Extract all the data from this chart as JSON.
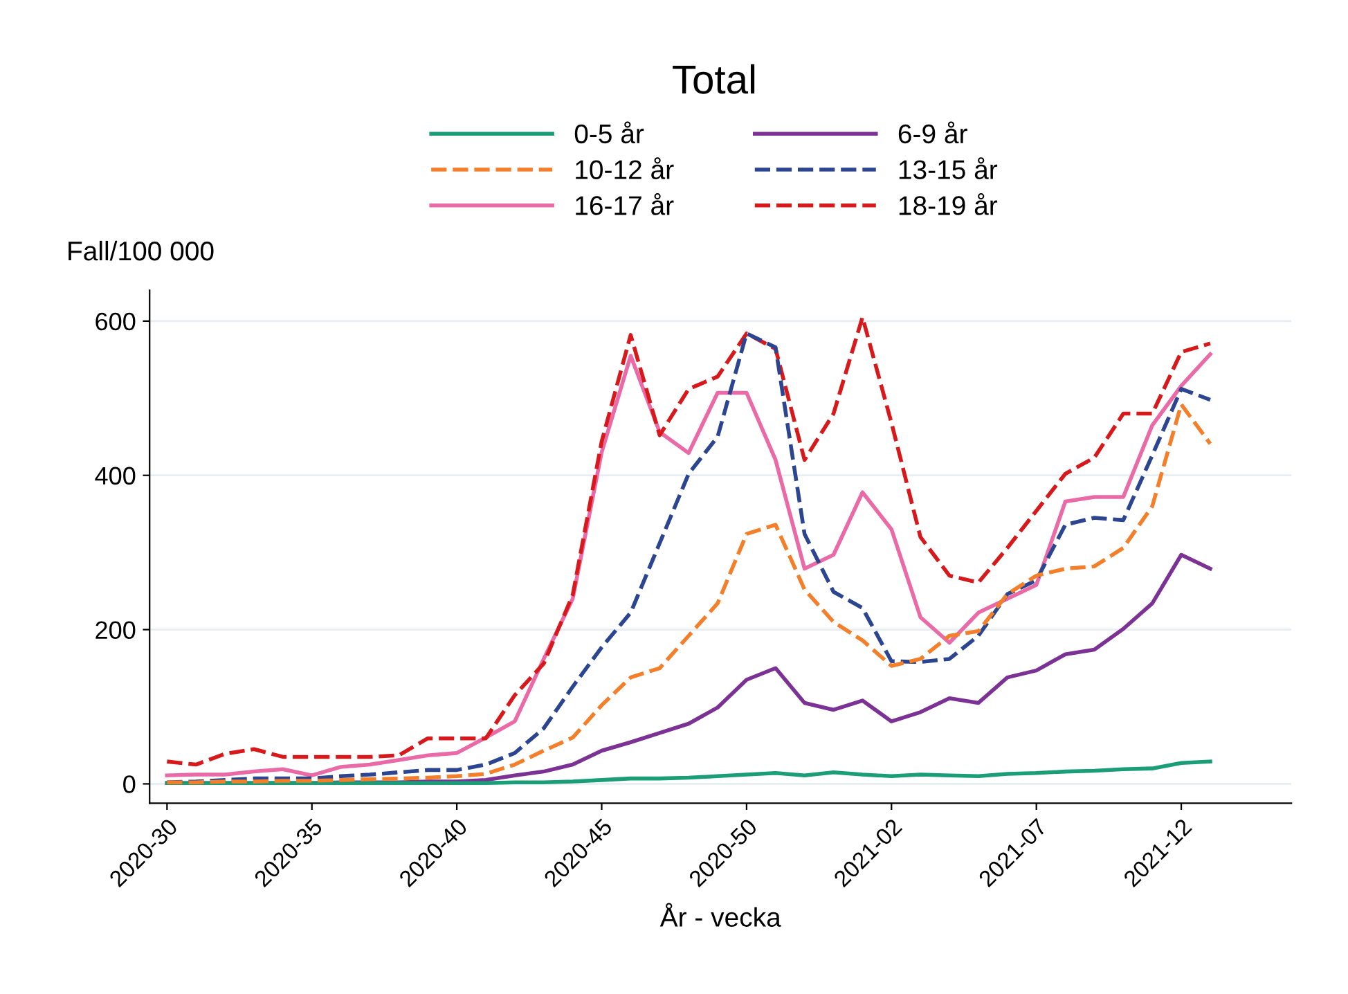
{
  "chart_data": {
    "type": "line",
    "title": "Total",
    "ylabel": "Fall/100 000",
    "xlabel": "År - vecka",
    "categories": [
      "2020-30",
      null,
      null,
      null,
      null,
      "2020-35",
      null,
      null,
      null,
      null,
      "2020-40",
      null,
      null,
      null,
      null,
      "2020-45",
      null,
      null,
      null,
      null,
      "2020-50",
      null,
      null,
      null,
      null,
      "2021-02",
      null,
      null,
      null,
      null,
      "2021-07",
      null,
      null,
      null,
      null,
      "2021-12",
      null,
      null,
      null
    ],
    "ylim": [
      -25,
      640
    ],
    "yticks": [
      0,
      200,
      400,
      600
    ],
    "grid": "y",
    "legend": "top",
    "marker": "none",
    "series": [
      {
        "name": "0-5 år",
        "color": "#1b9e77",
        "line_style": "solid",
        "values": [
          1,
          1,
          1,
          1,
          1,
          1,
          1,
          1,
          1,
          1,
          1,
          1,
          2,
          2,
          3,
          5,
          7,
          7,
          8,
          10,
          12,
          14,
          11,
          15,
          12,
          10,
          12,
          11,
          10,
          13,
          14,
          16,
          17,
          19,
          20,
          27,
          29,
          null,
          null
        ]
      },
      {
        "name": "6-9 år",
        "color": "#7b3294",
        "line_style": "solid",
        "values": [
          1,
          1,
          1,
          1,
          1,
          1,
          2,
          2,
          2,
          3,
          3,
          5,
          11,
          16,
          25,
          43,
          54,
          66,
          78,
          99,
          135,
          150,
          105,
          96,
          108,
          81,
          93,
          111,
          105,
          138,
          147,
          168,
          174,
          201,
          234,
          297,
          279,
          null,
          null
        ]
      },
      {
        "name": "10-12 år",
        "color": "#f47f2b",
        "line_style": "dashed",
        "values": [
          2,
          2,
          3,
          3,
          4,
          4,
          5,
          6,
          7,
          8,
          10,
          13,
          25,
          43,
          60,
          102,
          138,
          150,
          192,
          234,
          324,
          336,
          252,
          210,
          186,
          153,
          162,
          192,
          198,
          246,
          270,
          279,
          282,
          306,
          360,
          492,
          441,
          null,
          null
        ]
      },
      {
        "name": "13-15 år",
        "color": "#2b4591",
        "line_style": "dashed",
        "values": [
          2,
          3,
          5,
          7,
          7,
          7,
          10,
          12,
          15,
          18,
          18,
          25,
          40,
          72,
          126,
          177,
          222,
          312,
          402,
          450,
          584,
          566,
          324,
          249,
          228,
          159,
          158,
          162,
          192,
          246,
          264,
          336,
          345,
          342,
          426,
          512,
          498,
          null,
          null
        ]
      },
      {
        "name": "16-17 år",
        "color": "#e96aa6",
        "line_style": "solid",
        "values": [
          11,
          12,
          12,
          16,
          19,
          11,
          22,
          25,
          31,
          37,
          40,
          60,
          81,
          162,
          240,
          430,
          555,
          456,
          429,
          507,
          507,
          420,
          279,
          297,
          378,
          330,
          216,
          183,
          222,
          240,
          258,
          366,
          372,
          372,
          465,
          516,
          557,
          null,
          null
        ]
      },
      {
        "name": "18-19 år",
        "color": "#d7191c",
        "line_style": "dashed",
        "values": [
          29,
          25,
          39,
          45,
          35,
          35,
          35,
          35,
          37,
          59,
          59,
          59,
          115,
          156,
          245,
          444,
          582,
          452,
          512,
          528,
          584,
          564,
          420,
          480,
          605,
          468,
          320,
          270,
          261,
          306,
          354,
          402,
          423,
          480,
          480,
          560,
          571,
          null,
          null
        ]
      }
    ]
  }
}
